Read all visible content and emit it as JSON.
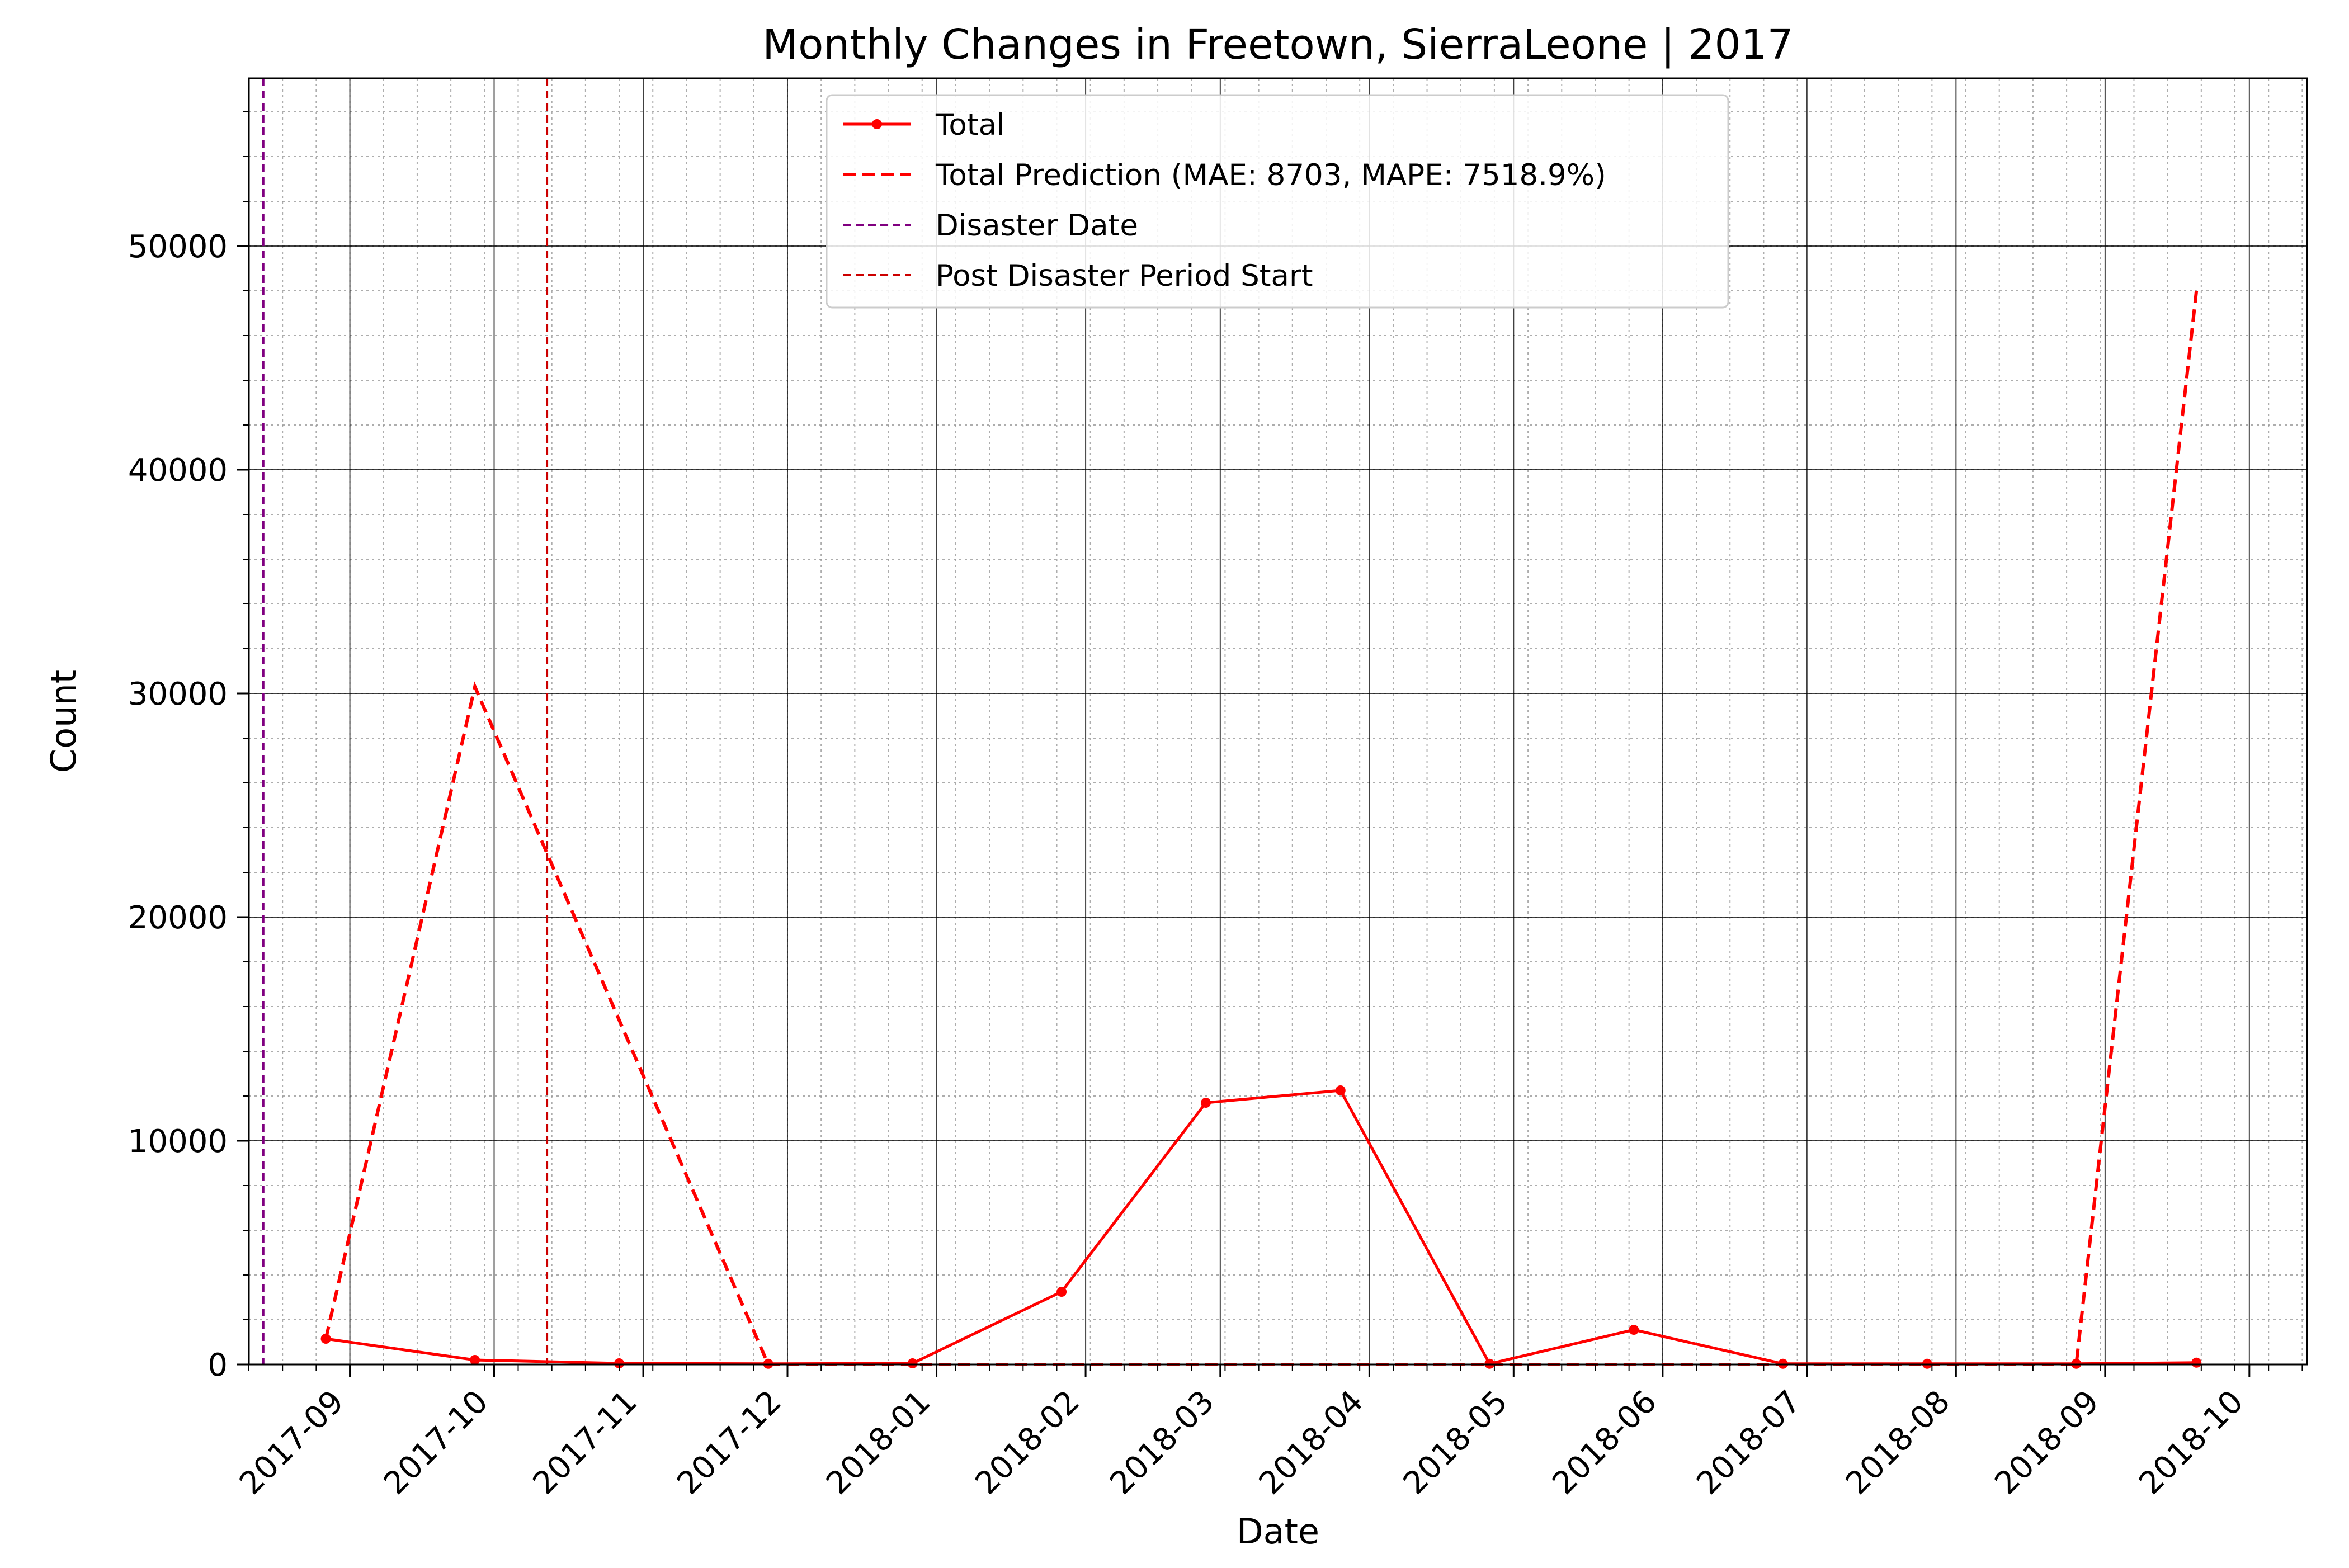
{
  "chart_data": {
    "type": "line",
    "title": "Monthly Changes in Freetown, SierraLeone | 2017",
    "xlabel": "Date",
    "ylabel": "Count",
    "x_range": [
      "2017-08-11",
      "2018-10-13"
    ],
    "ylim": [
      0,
      57500
    ],
    "grid": true,
    "legend_placement": "top-center",
    "x_tick_labels": [
      "2017-09",
      "2017-10",
      "2017-11",
      "2017-12",
      "2018-01",
      "2018-02",
      "2018-03",
      "2018-04",
      "2018-05",
      "2018-06",
      "2018-07",
      "2018-08",
      "2018-09",
      "2018-10"
    ],
    "y_tick_labels": [
      "0",
      "10000",
      "20000",
      "30000",
      "40000",
      "50000"
    ],
    "y_ticks": [
      0,
      10000,
      20000,
      30000,
      40000,
      50000
    ],
    "series": [
      {
        "name": "Total",
        "color": "#ff0000",
        "style": "solid-markers",
        "points": [
          {
            "x": "2017-08-27",
            "y": 1150
          },
          {
            "x": "2017-09-27",
            "y": 200
          },
          {
            "x": "2017-10-27",
            "y": 50
          },
          {
            "x": "2017-11-27",
            "y": 30
          },
          {
            "x": "2017-12-27",
            "y": 50
          },
          {
            "x": "2018-01-27",
            "y": 3250
          },
          {
            "x": "2018-02-26",
            "y": 11700
          },
          {
            "x": "2018-03-26",
            "y": 12250
          },
          {
            "x": "2018-04-26",
            "y": 30
          },
          {
            "x": "2018-05-26",
            "y": 1550
          },
          {
            "x": "2018-06-26",
            "y": 30
          },
          {
            "x": "2018-07-26",
            "y": 30
          },
          {
            "x": "2018-08-26",
            "y": 30
          },
          {
            "x": "2018-09-20",
            "y": 80
          }
        ]
      },
      {
        "name": "Total Prediction (MAE: 8703, MAPE: 7518.9%)",
        "color": "#ff0000",
        "style": "dashed",
        "points": [
          {
            "x": "2017-08-27",
            "y": 1150
          },
          {
            "x": "2017-09-27",
            "y": 30300
          },
          {
            "x": "2017-11-27",
            "y": 0
          },
          {
            "x": "2018-08-26",
            "y": 0
          },
          {
            "x": "2018-09-20",
            "y": 48000
          }
        ]
      }
    ],
    "vlines": [
      {
        "name": "Disaster Date",
        "x": "2017-08-14",
        "color": "#800080"
      },
      {
        "name": "Post Disaster Period Start",
        "x": "2017-10-12",
        "color": "#cc0000"
      }
    ]
  }
}
